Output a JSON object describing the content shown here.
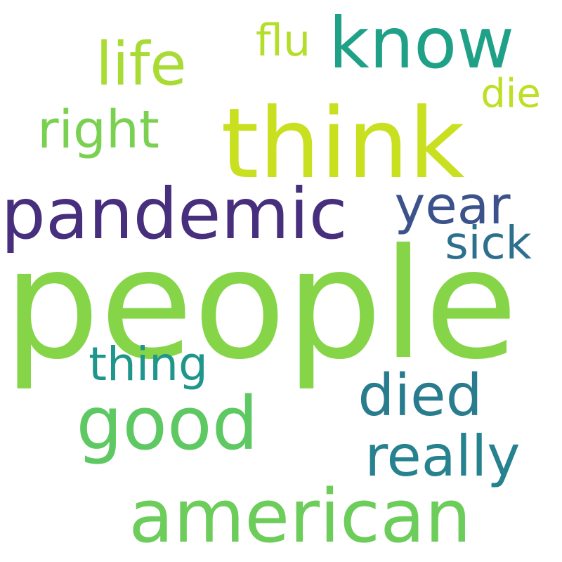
{
  "words": [
    {
      "id": "people",
      "text": "people",
      "color": "#86d549"
    },
    {
      "id": "think",
      "text": "think",
      "color": "#c8e020"
    },
    {
      "id": "american",
      "text": "american",
      "color": "#6ccd5a"
    },
    {
      "id": "know",
      "text": "know",
      "color": "#1fa188"
    },
    {
      "id": "good",
      "text": "good",
      "color": "#5ec962"
    },
    {
      "id": "pandemic",
      "text": "pandemic",
      "color": "#472f7d"
    },
    {
      "id": "life",
      "text": "life",
      "color": "#a8db34"
    },
    {
      "id": "really",
      "text": "really",
      "color": "#26828e"
    },
    {
      "id": "died",
      "text": "died",
      "color": "#287c8e"
    },
    {
      "id": "year",
      "text": "year",
      "color": "#3b528b"
    },
    {
      "id": "right",
      "text": "right",
      "color": "#7ad151"
    },
    {
      "id": "thing",
      "text": "thing",
      "color": "#1f968b"
    },
    {
      "id": "sick",
      "text": "sick",
      "color": "#2d708e"
    },
    {
      "id": "flu",
      "text": "flu",
      "color": "#b5de2b"
    },
    {
      "id": "die",
      "text": "die",
      "color": "#bddf26"
    }
  ]
}
